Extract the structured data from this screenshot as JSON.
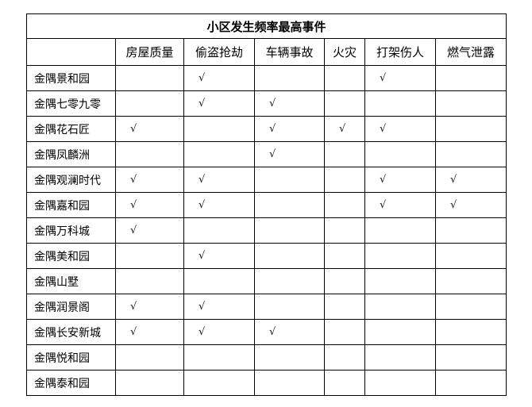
{
  "title": "小区发生频率最高事件",
  "columns": [
    "房屋质量",
    "偷盗抢劫",
    "车辆事故",
    "火灾",
    "打架伤人",
    "燃气泄露"
  ],
  "check_mark": "√",
  "rows": [
    {
      "name": "金隅景和园",
      "cells": [
        "",
        "√",
        "",
        "",
        "√",
        ""
      ]
    },
    {
      "name": "金隅七零九零",
      "cells": [
        "",
        "√",
        "√",
        "",
        "",
        ""
      ]
    },
    {
      "name": "金隅花石匠",
      "cells": [
        "√",
        "",
        "√",
        "√",
        "√",
        ""
      ]
    },
    {
      "name": "金隅凤麟洲",
      "cells": [
        "",
        "",
        "√",
        "",
        "",
        ""
      ]
    },
    {
      "name": "金隅观澜时代",
      "cells": [
        "√",
        "√",
        "",
        "",
        "√",
        "√"
      ]
    },
    {
      "name": "金隅嘉和园",
      "cells": [
        "√",
        "√",
        "",
        "",
        "√",
        "√"
      ]
    },
    {
      "name": "金隅万科城",
      "cells": [
        "√",
        "",
        "",
        "",
        "",
        ""
      ]
    },
    {
      "name": "金隅美和园",
      "cells": [
        "",
        "√",
        "",
        "",
        "",
        ""
      ]
    },
    {
      "name": "金隅山墅",
      "cells": [
        "",
        "",
        "",
        "",
        "",
        ""
      ]
    },
    {
      "name": "金隅润景阁",
      "cells": [
        "√",
        "√",
        "",
        "",
        "",
        ""
      ]
    },
    {
      "name": "金隅长安新城",
      "cells": [
        "√",
        "√",
        "√",
        "",
        "",
        ""
      ]
    },
    {
      "name": "金隅悦和园",
      "cells": [
        "",
        "",
        "",
        "",
        "",
        ""
      ]
    },
    {
      "name": "金隅泰和园",
      "cells": [
        "",
        "",
        "",
        "",
        "",
        ""
      ]
    }
  ]
}
